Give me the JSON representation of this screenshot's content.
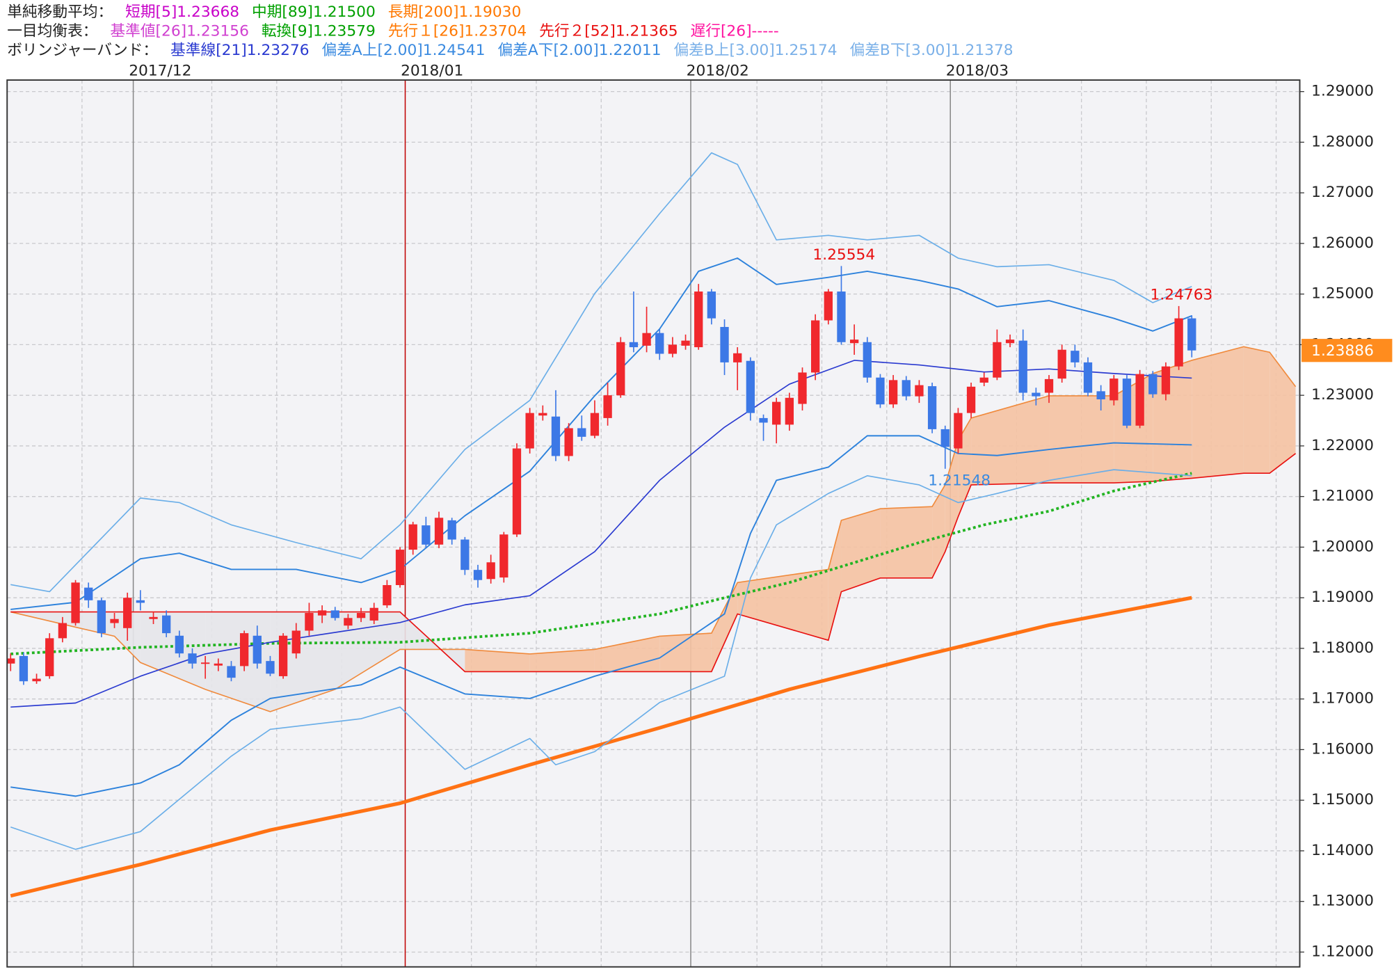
{
  "chart_data": {
    "type": "candlestick",
    "legend": [
      [
        {
          "text": "単純移動平均：",
          "color": "#222222"
        },
        {
          "text": "短期[5]1.23668",
          "color": "#c800c8"
        },
        {
          "text": "中期[89]1.21500",
          "color": "#00a000"
        },
        {
          "text": "長期[200]1.19030",
          "color": "#ff7800"
        }
      ],
      [
        {
          "text": "一目均衡表：",
          "color": "#222222"
        },
        {
          "text": "基準値[26]1.23156",
          "color": "#d040d0"
        },
        {
          "text": "転換[9]1.23579",
          "color": "#00a000"
        },
        {
          "text": "先行１[26]1.23704",
          "color": "#ff7800"
        },
        {
          "text": "先行２[52]1.21365",
          "color": "#e81010"
        },
        {
          "text": "遅行[26]-----",
          "color": "#ff14a0"
        }
      ],
      [
        {
          "text": "ボリンジャーバンド：",
          "color": "#222222"
        },
        {
          "text": "基準線[21]1.23276",
          "color": "#2a3ad0"
        },
        {
          "text": "偏差A上[2.00]1.24541",
          "color": "#3a8ae0"
        },
        {
          "text": "偏差A下[2.00]1.22011",
          "color": "#3a8ae0"
        },
        {
          "text": "偏差B上[3.00]1.25174",
          "color": "#7ab0e8"
        },
        {
          "text": "偏差B下[3.00]1.21378",
          "color": "#7ab0e8"
        }
      ]
    ],
    "xlim": [
      -0.27,
      99.32
    ],
    "ylim": [
      1.11707,
      1.29228
    ],
    "yticks": [
      {
        "value": 1.12,
        "label": "1.12000"
      },
      {
        "value": 1.13,
        "label": "1.13000"
      },
      {
        "value": 1.14,
        "label": "1.14000"
      },
      {
        "value": 1.15,
        "label": "1.15000"
      },
      {
        "value": 1.16,
        "label": "1.16000"
      },
      {
        "value": 1.17,
        "label": "1.17000"
      },
      {
        "value": 1.18,
        "label": "1.18000"
      },
      {
        "value": 1.19,
        "label": "1.19000"
      },
      {
        "value": 1.2,
        "label": "1.20000"
      },
      {
        "value": 1.21,
        "label": "1.21000"
      },
      {
        "value": 1.22,
        "label": "1.22000"
      },
      {
        "value": 1.23,
        "label": "1.23000"
      },
      {
        "value": 1.24,
        "label": "1.24000"
      },
      {
        "value": 1.25,
        "label": "1.25000"
      },
      {
        "value": 1.26,
        "label": "1.26000"
      },
      {
        "value": 1.27,
        "label": "1.27000"
      },
      {
        "value": 1.28,
        "label": "1.28000"
      },
      {
        "value": 1.29,
        "label": "1.29000"
      }
    ],
    "xticks": [
      {
        "value": 9.45,
        "label": "2017/12"
      },
      {
        "value": 30.4,
        "label": "2018/01"
      },
      {
        "value": 52.4,
        "label": "2018/02"
      },
      {
        "value": 72.4,
        "label": "2018/03"
      }
    ],
    "xtick_colors": [
      "#888888",
      "#c00000",
      "#888888",
      "#888888"
    ],
    "xgrid": [
      5.5,
      15.5,
      20.5,
      25.5,
      35.5,
      40.5,
      45.5,
      57.5,
      62.5,
      67.5,
      77.5,
      82.5,
      87.5,
      92.5,
      97.5
    ],
    "grid": true,
    "up_color": "#f0282d",
    "down_color": "#3c78e6",
    "open": [
      1.177,
      1.1785,
      1.1735,
      1.1745,
      1.182,
      1.185,
      1.192,
      1.1895,
      1.185,
      1.184,
      1.1895,
      1.1858,
      1.1865,
      1.1825,
      1.179,
      1.177,
      1.1766,
      1.1765,
      1.1765,
      1.1825,
      1.1775,
      1.1745,
      1.179,
      1.1835,
      1.1865,
      1.1875,
      1.1845,
      1.186,
      1.1855,
      1.1885,
      1.1925,
      1.1995,
      1.2043,
      1.2005,
      1.2053,
      1.2015,
      1.1955,
      1.1937,
      1.194,
      1.2025,
      1.2195,
      1.226,
      1.2258,
      1.218,
      1.2235,
      1.222,
      1.2255,
      1.23,
      1.2405,
      1.2398,
      1.2423,
      1.2382,
      1.2398,
      1.2395,
      1.2505,
      1.2435,
      1.2365,
      1.2368,
      1.2255,
      1.2242,
      1.2242,
      1.2283,
      1.2345,
      1.2448,
      1.2505,
      1.2403,
      1.2405,
      1.2335,
      1.2282,
      1.233,
      1.2298,
      1.2318,
      1.2233,
      1.2195,
      1.2265,
      1.2325,
      1.2335,
      1.2403,
      1.2408,
      1.2305,
      1.2305,
      1.2333,
      1.2388,
      1.2365,
      1.2308,
      1.229,
      1.2333,
      1.224,
      1.2342,
      1.2302,
      1.2357,
      1.2452
    ],
    "high": [
      1.179,
      1.1792,
      1.175,
      1.183,
      1.1862,
      1.1935,
      1.193,
      1.19,
      1.187,
      1.191,
      1.1915,
      1.1872,
      1.1875,
      1.1835,
      1.18,
      1.1785,
      1.178,
      1.1775,
      1.1835,
      1.1845,
      1.1785,
      1.183,
      1.185,
      1.189,
      1.1885,
      1.1882,
      1.1868,
      1.188,
      1.189,
      1.1935,
      1.2,
      1.205,
      1.206,
      1.207,
      1.2058,
      1.202,
      1.1965,
      1.1985,
      1.203,
      1.2205,
      1.2275,
      1.228,
      1.231,
      1.2245,
      1.226,
      1.229,
      1.2325,
      1.2415,
      1.2505,
      1.2475,
      1.243,
      1.2415,
      1.242,
      1.252,
      1.251,
      1.245,
      1.2395,
      1.2375,
      1.2262,
      1.2295,
      1.2305,
      1.2355,
      1.246,
      1.251,
      1.25554,
      1.244,
      1.2415,
      1.2342,
      1.234,
      1.2338,
      1.233,
      1.2325,
      1.224,
      1.2275,
      1.2325,
      1.2345,
      1.243,
      1.242,
      1.243,
      1.2315,
      1.234,
      1.24,
      1.24,
      1.2375,
      1.232,
      1.234,
      1.234,
      1.235,
      1.2348,
      1.2365,
      1.24763,
      1.2458
    ],
    "low": [
      1.1755,
      1.1728,
      1.173,
      1.174,
      1.1812,
      1.1845,
      1.188,
      1.1822,
      1.184,
      1.1815,
      1.1875,
      1.1848,
      1.1822,
      1.1782,
      1.176,
      1.174,
      1.1755,
      1.1735,
      1.1755,
      1.176,
      1.1745,
      1.174,
      1.178,
      1.1825,
      1.185,
      1.1855,
      1.1838,
      1.1852,
      1.1848,
      1.188,
      1.192,
      1.1985,
      1.1998,
      1.1998,
      1.2005,
      1.1945,
      1.192,
      1.1928,
      1.193,
      1.202,
      1.2185,
      1.225,
      1.217,
      1.217,
      1.221,
      1.2215,
      1.224,
      1.2295,
      1.2385,
      1.2385,
      1.237,
      1.2375,
      1.239,
      1.239,
      1.244,
      1.234,
      1.231,
      1.225,
      1.221,
      1.2205,
      1.223,
      1.227,
      1.233,
      1.244,
      1.24,
      1.238,
      1.2325,
      1.2275,
      1.2275,
      1.229,
      1.2285,
      1.2225,
      1.21548,
      1.2185,
      1.2255,
      1.2318,
      1.233,
      1.2395,
      1.229,
      1.228,
      1.2285,
      1.2325,
      1.2355,
      1.2298,
      1.227,
      1.228,
      1.2235,
      1.2235,
      1.2295,
      1.229,
      1.235,
      1.2375
    ],
    "close": [
      1.178,
      1.1735,
      1.174,
      1.182,
      1.185,
      1.193,
      1.1895,
      1.183,
      1.1858,
      1.19,
      1.189,
      1.1862,
      1.183,
      1.179,
      1.177,
      1.1772,
      1.177,
      1.1742,
      1.183,
      1.177,
      1.175,
      1.1825,
      1.1835,
      1.187,
      1.1875,
      1.186,
      1.186,
      1.187,
      1.188,
      1.1925,
      1.1995,
      1.2045,
      1.2005,
      1.2058,
      1.2015,
      1.1955,
      1.1935,
      1.197,
      1.2025,
      1.2195,
      1.2265,
      1.2265,
      1.218,
      1.2235,
      1.2218,
      1.2265,
      1.23,
      1.2405,
      1.2395,
      1.2423,
      1.2382,
      1.24,
      1.2408,
      1.2505,
      1.2452,
      1.2365,
      1.2383,
      1.2265,
      1.2246,
      1.2287,
      1.2295,
      1.2345,
      1.2448,
      1.2505,
      1.2405,
      1.241,
      1.2335,
      1.2282,
      1.233,
      1.2298,
      1.232,
      1.2233,
      1.2198,
      1.2265,
      1.2317,
      1.2335,
      1.2405,
      1.241,
      1.2305,
      1.2298,
      1.2332,
      1.239,
      1.2365,
      1.2305,
      1.2292,
      1.2333,
      1.224,
      1.2342,
      1.2302,
      1.2357,
      1.2452,
      1.23886
    ],
    "cloud": {
      "a_above": "#f5c2a2",
      "b_above": "#e6e6ea",
      "a_color": "#f08a3c",
      "b_color": "#e81010",
      "x": [
        0,
        5,
        8,
        10,
        15,
        20,
        25,
        30,
        35,
        40,
        45,
        50,
        54,
        56,
        63,
        64,
        67,
        71,
        72,
        73,
        74,
        80,
        85,
        88,
        91,
        95,
        97,
        99
      ],
      "span_a": [
        1.1872,
        1.1842,
        1.1824,
        1.1772,
        1.1719,
        1.1675,
        1.1719,
        1.1798,
        1.1798,
        1.1789,
        1.1798,
        1.1824,
        1.183,
        1.193,
        1.1956,
        1.2053,
        1.2076,
        1.208,
        1.2123,
        1.2211,
        1.2255,
        1.2299,
        1.2299,
        1.2343,
        1.2369,
        1.2396,
        1.2385,
        1.2317
      ],
      "span_b": [
        1.1872,
        1.1872,
        1.1872,
        1.1872,
        1.1872,
        1.1872,
        1.1872,
        1.1872,
        1.1754,
        1.1754,
        1.1754,
        1.1754,
        1.1754,
        1.1868,
        1.1816,
        1.1912,
        1.1939,
        1.1939,
        1.1991,
        1.206,
        1.2123,
        1.2127,
        1.2127,
        1.213,
        1.2136,
        1.2146,
        1.2146,
        1.2185
      ]
    },
    "lines": [
      {
        "color": "#ff7214",
        "width": 4,
        "x": [
          0,
          10,
          20,
          30,
          40,
          50,
          60,
          70,
          80,
          91
        ],
        "values": [
          1.1311,
          1.1373,
          1.1441,
          1.1494,
          1.157,
          1.1643,
          1.1719,
          1.1784,
          1.1846,
          1.19
        ]
      },
      {
        "color": "#22b422",
        "width": 3,
        "dash": "3 3",
        "x": [
          0,
          10,
          20,
          30,
          40,
          50,
          55,
          60,
          70,
          75,
          80,
          85,
          91
        ],
        "values": [
          1.1789,
          1.1802,
          1.181,
          1.1812,
          1.183,
          1.1868,
          1.19,
          1.193,
          1.2009,
          1.2044,
          1.2071,
          1.2111,
          1.2146
        ]
      },
      {
        "color": "#2a3ad0",
        "width": 1.3,
        "x": [
          0,
          5,
          10,
          15,
          20,
          30,
          35,
          40,
          45,
          50,
          55,
          60,
          65,
          70,
          75,
          80,
          85,
          91
        ],
        "values": [
          1.1684,
          1.1692,
          1.1745,
          1.1789,
          1.1812,
          1.1851,
          1.1886,
          1.1904,
          1.1991,
          1.2132,
          1.2237,
          1.2322,
          1.2369,
          1.236,
          1.2346,
          1.2352,
          1.2343,
          1.2334
        ]
      },
      {
        "color": "#2d82dc",
        "width": 1.5,
        "x": [
          0,
          5,
          10,
          13,
          17,
          22,
          27,
          30,
          35,
          40,
          45,
          50,
          53,
          56,
          59,
          63,
          66,
          70,
          73,
          76,
          80,
          85,
          88,
          91
        ],
        "values": [
          1.1877,
          1.1891,
          1.1977,
          1.1988,
          1.1956,
          1.1956,
          1.193,
          1.1956,
          1.2062,
          1.215,
          1.2299,
          1.2431,
          1.2545,
          1.2571,
          1.2519,
          1.2533,
          1.2545,
          1.2527,
          1.251,
          1.2475,
          1.2487,
          1.2452,
          1.2427,
          1.2457
        ]
      },
      {
        "color": "#2d82dc",
        "width": 1.5,
        "x": [
          0,
          5,
          10,
          13,
          17,
          20,
          27,
          30,
          35,
          40,
          45,
          50,
          55,
          57,
          59,
          63,
          66,
          70,
          73,
          76,
          80,
          85,
          91
        ],
        "values": [
          1.1526,
          1.1508,
          1.1534,
          1.157,
          1.1658,
          1.1701,
          1.1728,
          1.1763,
          1.171,
          1.1701,
          1.1745,
          1.1781,
          1.1868,
          1.2027,
          1.2132,
          1.2158,
          1.222,
          1.222,
          1.2185,
          1.2181,
          1.2193,
          1.2206,
          1.2202
        ]
      },
      {
        "color": "#6aaee8",
        "width": 1.3,
        "x": [
          0,
          3,
          10,
          13,
          17,
          22,
          27,
          30,
          35,
          40,
          45,
          50,
          54,
          56,
          59,
          63,
          66,
          70,
          73,
          76,
          80,
          85,
          88,
          91
        ],
        "values": [
          1.1926,
          1.1912,
          1.2097,
          1.2088,
          1.2044,
          1.2009,
          1.1977,
          1.2044,
          1.2193,
          1.229,
          1.2501,
          1.2659,
          1.2779,
          1.2756,
          1.2607,
          1.2616,
          1.2607,
          1.2616,
          1.2571,
          1.2554,
          1.2558,
          1.2527,
          1.2483,
          1.2515
        ]
      },
      {
        "color": "#6aaee8",
        "width": 1.3,
        "x": [
          0,
          5,
          10,
          17,
          20,
          27,
          30,
          35,
          40,
          42,
          45,
          50,
          55,
          57,
          59,
          63,
          66,
          70,
          73,
          76,
          80,
          85,
          91
        ],
        "values": [
          1.1447,
          1.1403,
          1.1438,
          1.1587,
          1.164,
          1.1661,
          1.1684,
          1.1561,
          1.1622,
          1.157,
          1.1596,
          1.1693,
          1.1745,
          1.1939,
          1.2044,
          1.2106,
          1.2141,
          1.2123,
          1.2088,
          1.2106,
          1.2132,
          1.2153,
          1.2141
        ]
      }
    ],
    "annotations": [
      {
        "text": "1.25554",
        "index": 64,
        "side": "high",
        "color": "#e81010"
      },
      {
        "text": "1.24763",
        "index": 90,
        "side": "high",
        "color": "#e81010"
      },
      {
        "text": "1.21548",
        "index": 72,
        "side": "low",
        "color": "#3a8ae0"
      }
    ],
    "current_price_label": "1.23886",
    "current_price_color": "#ff8c1e"
  }
}
